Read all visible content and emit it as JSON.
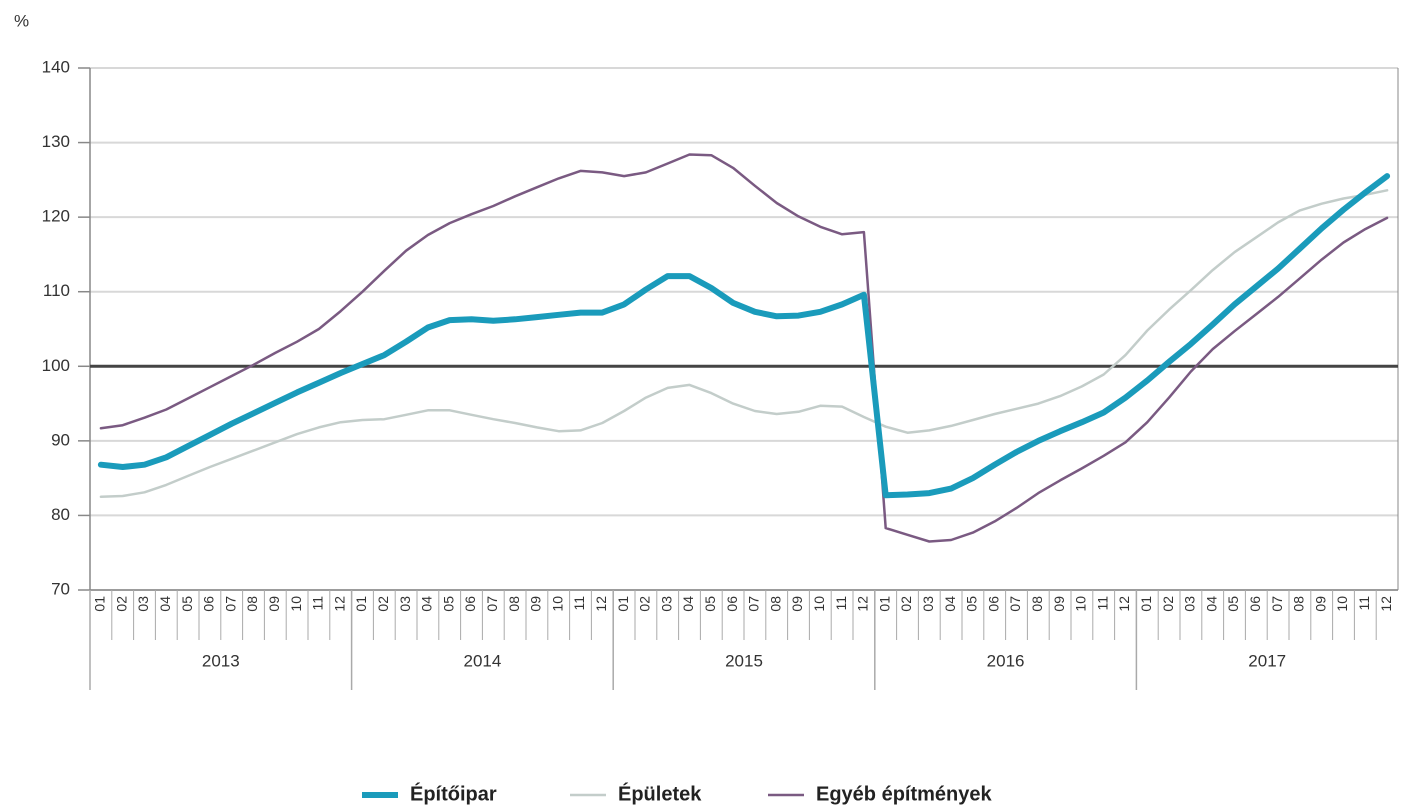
{
  "chart_data": {
    "type": "line",
    "y_unit_label": "%",
    "categories": [
      "01",
      "02",
      "03",
      "04",
      "05",
      "06",
      "07",
      "08",
      "09",
      "10",
      "11",
      "12",
      "01",
      "02",
      "03",
      "04",
      "05",
      "06",
      "07",
      "08",
      "09",
      "10",
      "11",
      "12",
      "01",
      "02",
      "03",
      "04",
      "05",
      "06",
      "07",
      "08",
      "09",
      "10",
      "11",
      "12",
      "01",
      "02",
      "03",
      "04",
      "05",
      "06",
      "07",
      "08",
      "09",
      "10",
      "11",
      "12",
      "01",
      "02",
      "03",
      "04",
      "05",
      "06",
      "07",
      "08",
      "09",
      "10",
      "11",
      "12"
    ],
    "years": [
      "2013",
      "2014",
      "2015",
      "2016",
      "2017"
    ],
    "ylim": [
      70,
      140
    ],
    "yticks": [
      70,
      80,
      90,
      100,
      110,
      120,
      130,
      140
    ],
    "grid": true,
    "reference_line": 100,
    "legend": "bottom",
    "series": [
      {
        "name": "Építőipar",
        "color": "#1a9bbb",
        "width": 6,
        "values": [
          86.8,
          86.5,
          86.8,
          87.8,
          89.3,
          90.8,
          92.3,
          93.7,
          95.1,
          96.5,
          97.8,
          99.1,
          100.3,
          101.5,
          103.3,
          105.2,
          106.2,
          106.3,
          106.1,
          106.3,
          106.6,
          106.9,
          107.2,
          107.2,
          108.3,
          110.3,
          112.1,
          112.1,
          110.5,
          108.5,
          107.3,
          106.7,
          106.8,
          107.3,
          108.3,
          109.6,
          82.7,
          82.8,
          83.0,
          83.6,
          85.0,
          86.8,
          88.5,
          90.0,
          91.3,
          92.5,
          93.8,
          95.8,
          98.1,
          100.6,
          103.0,
          105.6,
          108.3,
          110.7,
          113.1,
          115.8,
          118.5,
          121.0,
          123.3,
          125.5
        ]
      },
      {
        "name": "Épületek",
        "color": "#c3cdca",
        "width": 2.5,
        "values": [
          82.5,
          82.6,
          83.1,
          84.1,
          85.3,
          86.5,
          87.6,
          88.7,
          89.8,
          90.9,
          91.8,
          92.5,
          92.8,
          92.9,
          93.5,
          94.1,
          94.1,
          93.5,
          92.9,
          92.4,
          91.8,
          91.3,
          91.4,
          92.4,
          94.0,
          95.8,
          97.1,
          97.5,
          96.4,
          95.0,
          94.0,
          93.6,
          93.9,
          94.7,
          94.6,
          93.2,
          91.9,
          91.1,
          91.4,
          92.0,
          92.8,
          93.6,
          94.3,
          95.0,
          96.0,
          97.3,
          98.9,
          101.5,
          104.8,
          107.6,
          110.2,
          112.9,
          115.3,
          117.3,
          119.3,
          120.9,
          121.8,
          122.5,
          123.0,
          123.6
        ]
      },
      {
        "name": "Egyéb építmények",
        "color": "#7a5a82",
        "width": 2.5,
        "values": [
          91.7,
          92.1,
          93.1,
          94.2,
          95.7,
          97.2,
          98.7,
          100.2,
          101.8,
          103.3,
          105.0,
          107.4,
          110.0,
          112.8,
          115.5,
          117.6,
          119.2,
          120.4,
          121.5,
          122.8,
          124.0,
          125.2,
          126.2,
          126.0,
          125.5,
          126.0,
          127.2,
          128.4,
          128.3,
          126.6,
          124.2,
          121.9,
          120.1,
          118.7,
          117.7,
          118.0,
          78.3,
          77.4,
          76.5,
          76.7,
          77.7,
          79.2,
          81.0,
          83.0,
          84.7,
          86.3,
          88.0,
          89.8,
          92.5,
          95.8,
          99.3,
          102.3,
          104.7,
          107.0,
          109.3,
          111.8,
          114.3,
          116.6,
          118.4,
          119.9
        ]
      }
    ]
  }
}
